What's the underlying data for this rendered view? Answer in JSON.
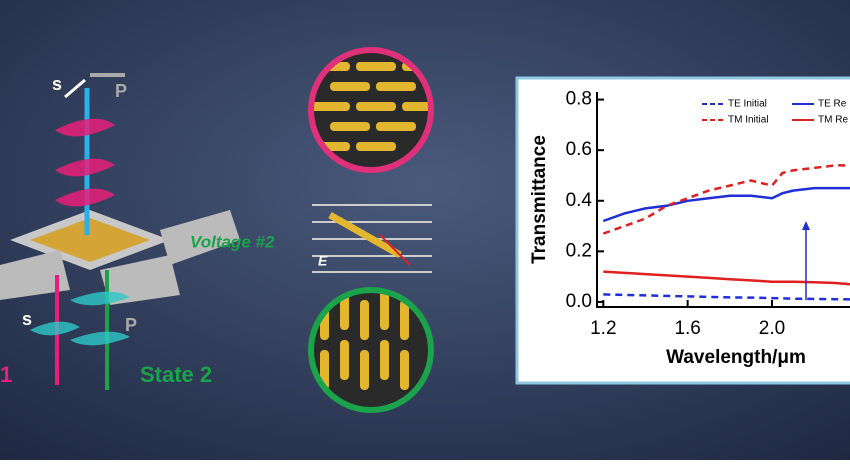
{
  "labels": {
    "s_top": "s",
    "p_top": "P",
    "voltage": "Voltage #2",
    "e_field": "E",
    "state2": "State 2",
    "state1": "1",
    "s_bottom": "s",
    "p_bottom": "P"
  },
  "chart_data": {
    "type": "line",
    "x_label": "Wavelength/μm",
    "y_label": "Transmittance",
    "x": [
      1.2,
      1.3,
      1.4,
      1.5,
      1.6,
      1.7,
      1.8,
      1.9,
      2.0,
      2.05,
      2.1,
      2.2,
      2.3,
      2.37
    ],
    "xlim": [
      1.17,
      2.37
    ],
    "xticks": [
      1.2,
      1.6,
      {
        "value": 2,
        "label": "2.0"
      }
    ],
    "ylim": [
      -0.02,
      0.83
    ],
    "yticks": [
      {
        "value": 0,
        "label": "0.0"
      },
      0.2,
      0.4,
      0.6,
      0.8
    ],
    "series": [
      {
        "name": "TE Initial",
        "color": "#1f2fd6",
        "dash": true,
        "values": [
          0.03,
          0.028,
          0.026,
          0.024,
          0.022,
          0.02,
          0.018,
          0.017,
          0.015,
          0.014,
          0.013,
          0.012,
          0.011,
          0.01
        ]
      },
      {
        "name": "TE Re",
        "color": "#1f2fd6",
        "dash": false,
        "values": [
          0.32,
          0.35,
          0.37,
          0.38,
          0.4,
          0.41,
          0.42,
          0.42,
          0.41,
          0.43,
          0.44,
          0.45,
          0.45,
          0.45
        ]
      },
      {
        "name": "TM Initial",
        "color": "#e02020",
        "dash": true,
        "values": [
          0.27,
          0.3,
          0.33,
          0.38,
          0.41,
          0.44,
          0.46,
          0.48,
          0.46,
          0.51,
          0.52,
          0.53,
          0.54,
          0.54
        ]
      },
      {
        "name": "TM Re",
        "color": "#e02020",
        "dash": false,
        "values": [
          0.12,
          0.115,
          0.11,
          0.105,
          0.1,
          0.095,
          0.09,
          0.085,
          0.08,
          0.08,
          0.08,
          0.078,
          0.075,
          0.07
        ]
      }
    ]
  }
}
